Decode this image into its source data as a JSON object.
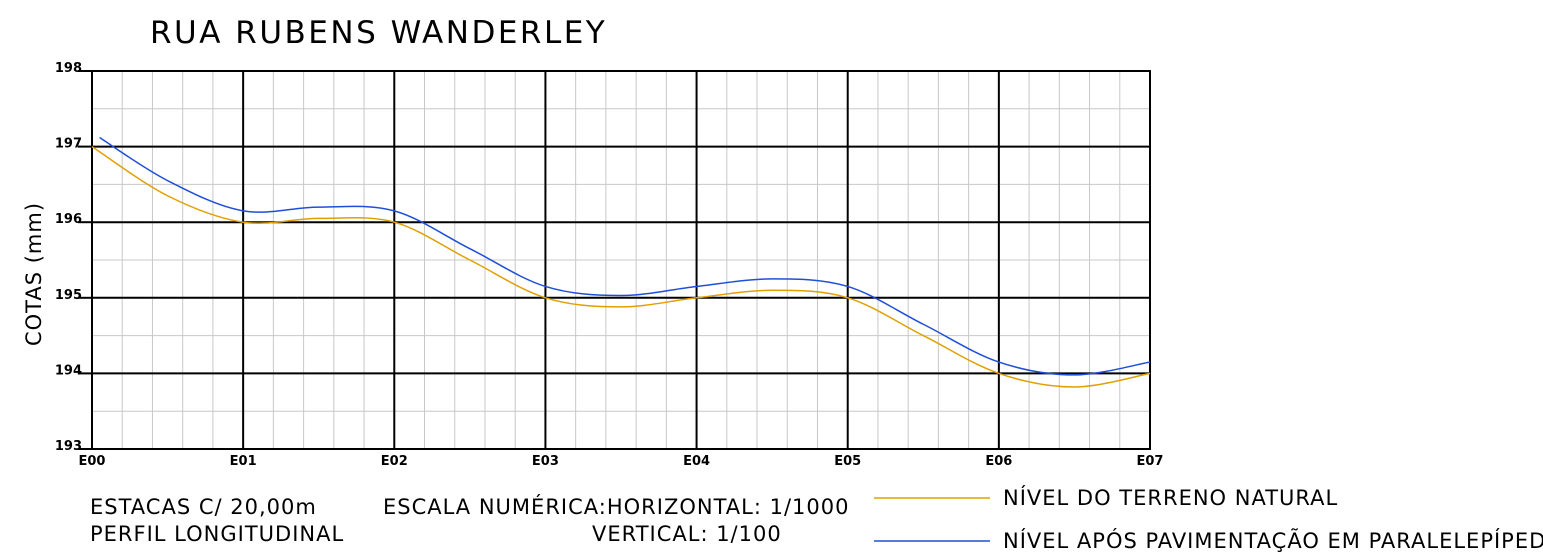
{
  "chart_data": {
    "type": "line",
    "title": "RUA RUBENS WANDERLEY",
    "ylabel": "COTAS (mm)",
    "xlabel": "",
    "categories": [
      "E00",
      "E01",
      "E02",
      "E03",
      "E04",
      "E05",
      "E06",
      "E07"
    ],
    "y_ticks": [
      "193",
      "194",
      "195",
      "196",
      "197",
      "198"
    ],
    "ylim": [
      193,
      198
    ],
    "grid": true,
    "series": [
      {
        "name": "NÍVEL DO TERRENO NATURAL",
        "color": "#e0a000",
        "x": [
          0,
          0.5,
          1,
          1.5,
          2,
          2.5,
          3,
          3.5,
          4,
          4.5,
          5,
          5.5,
          6,
          6.5,
          7
        ],
        "values": [
          197.0,
          196.35,
          196.0,
          196.05,
          196.0,
          195.5,
          195.0,
          194.88,
          195.0,
          195.1,
          195.0,
          194.5,
          194.0,
          193.82,
          194.0
        ]
      },
      {
        "name": "NÍVEL APÓS PAVIMENTAÇÃO EM PARALELEPÍPEDO",
        "color": "#1f4fd8",
        "x": [
          0.05,
          0.5,
          1,
          1.5,
          2,
          2.5,
          3,
          3.5,
          4,
          4.5,
          5,
          5.5,
          6,
          6.5,
          7
        ],
        "values": [
          197.12,
          196.55,
          196.15,
          196.2,
          196.15,
          195.65,
          195.15,
          195.03,
          195.15,
          195.25,
          195.15,
          194.65,
          194.15,
          193.98,
          194.15
        ]
      }
    ],
    "legend_position": "bottom-right"
  },
  "notes": {
    "stations": "ESTACAS C/ 20,00m",
    "profile": "PERFIL LONGITUDINAL",
    "scale_horizontal": "ESCALA NUMÉRICA:HORIZONTAL: 1/1000",
    "scale_vertical": "VERTICAL: 1/100"
  }
}
